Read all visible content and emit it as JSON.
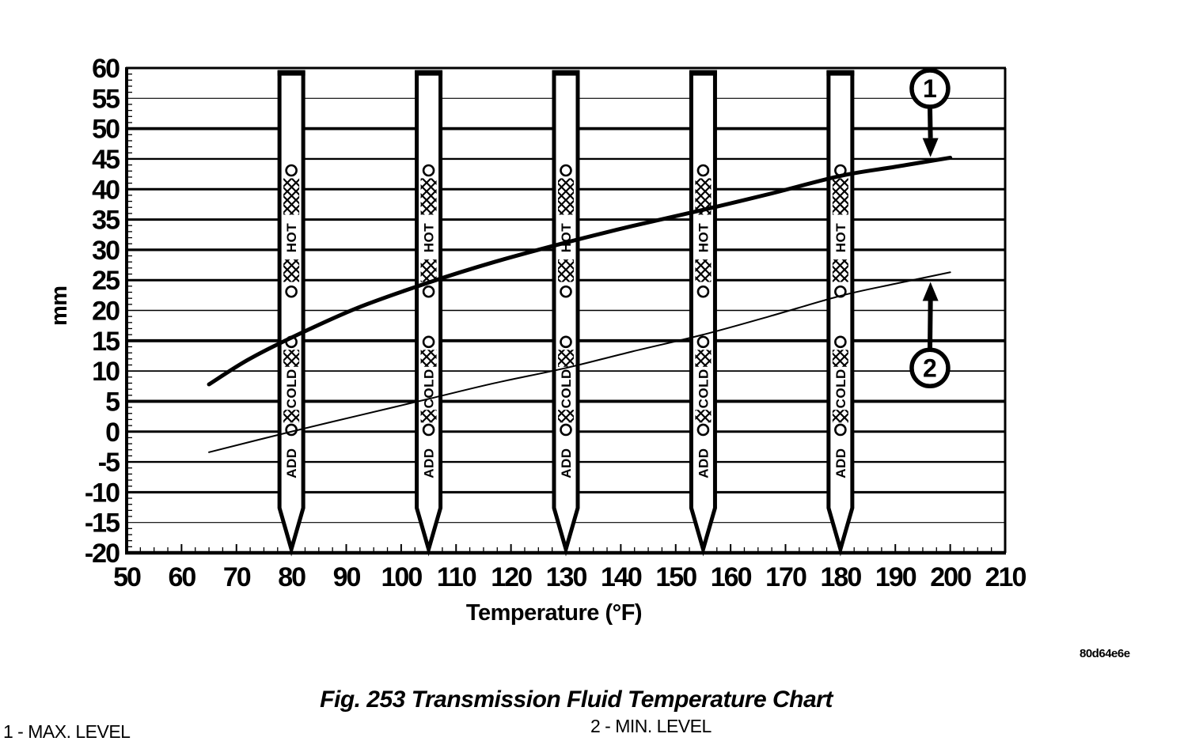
{
  "figure": {
    "caption": "Fig. 253 Transmission Fluid Temperature Chart",
    "legend_items": [
      {
        "text": "1 - MAX. LEVEL"
      },
      {
        "text": "2 - MIN. LEVEL"
      }
    ],
    "watermark": "80d64e6e"
  },
  "colors": {
    "ink": "#000000",
    "background": "#ffffff"
  },
  "chart_data": {
    "type": "line",
    "title": "",
    "xlabel": "Temperature (°F)",
    "ylabel": "mm",
    "xlim": [
      50,
      210
    ],
    "ylim": [
      -20,
      60
    ],
    "x_ticks": [
      50,
      60,
      70,
      80,
      90,
      100,
      110,
      120,
      130,
      140,
      150,
      160,
      170,
      180,
      190,
      200,
      210
    ],
    "x_minor_step": 2.5,
    "y_ticks": [
      60,
      55,
      50,
      45,
      40,
      35,
      30,
      25,
      20,
      15,
      10,
      5,
      0,
      -5,
      -10,
      -15,
      -20
    ],
    "y_minor_step": 1,
    "grid": "horizontal-only",
    "legend_position": "below-figure",
    "gridline_weights": {
      "55": 1.2,
      "50": 3.8,
      "45": 2.4,
      "40": 3,
      "35": 3,
      "30": 3.2,
      "25": 3,
      "20": 1.4,
      "15": 3.8,
      "10": 1.8,
      "5": 3.8,
      "0": 3,
      "-5": 2.4,
      "-10": 3,
      "-15": 1.2
    },
    "series": [
      {
        "id": "max-level-curve",
        "name": "MAX. LEVEL",
        "callout": "1",
        "stroke_width": 5,
        "points": [
          [
            65,
            7.8
          ],
          [
            72,
            11.8
          ],
          [
            80,
            15.5
          ],
          [
            92,
            20.4
          ],
          [
            105,
            24.6
          ],
          [
            117,
            28.0
          ],
          [
            130,
            31.2
          ],
          [
            142,
            33.9
          ],
          [
            155,
            36.6
          ],
          [
            167,
            39.2
          ],
          [
            180,
            42.2
          ],
          [
            190,
            43.7
          ],
          [
            200,
            45.2
          ]
        ]
      },
      {
        "id": "min-level-curve",
        "name": "MIN. LEVEL",
        "callout": "2",
        "stroke_width": 2,
        "points": [
          [
            65,
            -3.4
          ],
          [
            80,
            0.0
          ],
          [
            92,
            2.6
          ],
          [
            105,
            5.4
          ],
          [
            117,
            8.0
          ],
          [
            130,
            10.5
          ],
          [
            142,
            13.2
          ],
          [
            155,
            16.0
          ],
          [
            167,
            19.0
          ],
          [
            180,
            22.4
          ],
          [
            190,
            24.4
          ],
          [
            200,
            26.3
          ]
        ]
      }
    ],
    "dipsticks": {
      "temperatures": [
        80,
        105,
        130,
        155,
        180
      ],
      "top_mm": 59.2,
      "taper_start_mm": -12.6,
      "tip_mm": -19.4,
      "holes_mm": [
        43.1,
        23.1,
        14.8,
        0.3
      ],
      "hatch_bands_mm": [
        [
          41.8,
          35.8
        ],
        [
          28.4,
          24.7
        ],
        [
          13.5,
          10.7
        ],
        [
          3.6,
          1.5
        ]
      ],
      "zone_labels": [
        {
          "text": "HOT",
          "center_mm": 32.0
        },
        {
          "text": "COLD",
          "center_mm": 7.1
        },
        {
          "text": "ADD",
          "center_mm": -5.2
        }
      ]
    },
    "callouts": [
      {
        "label": "1",
        "circle_at": [
          196.3,
          56.6
        ],
        "arrow_tip_at": [
          196.4,
          45.3
        ]
      },
      {
        "label": "2",
        "circle_at": [
          196.3,
          10.5
        ],
        "arrow_tip_at": [
          196.4,
          24.7
        ]
      }
    ]
  }
}
